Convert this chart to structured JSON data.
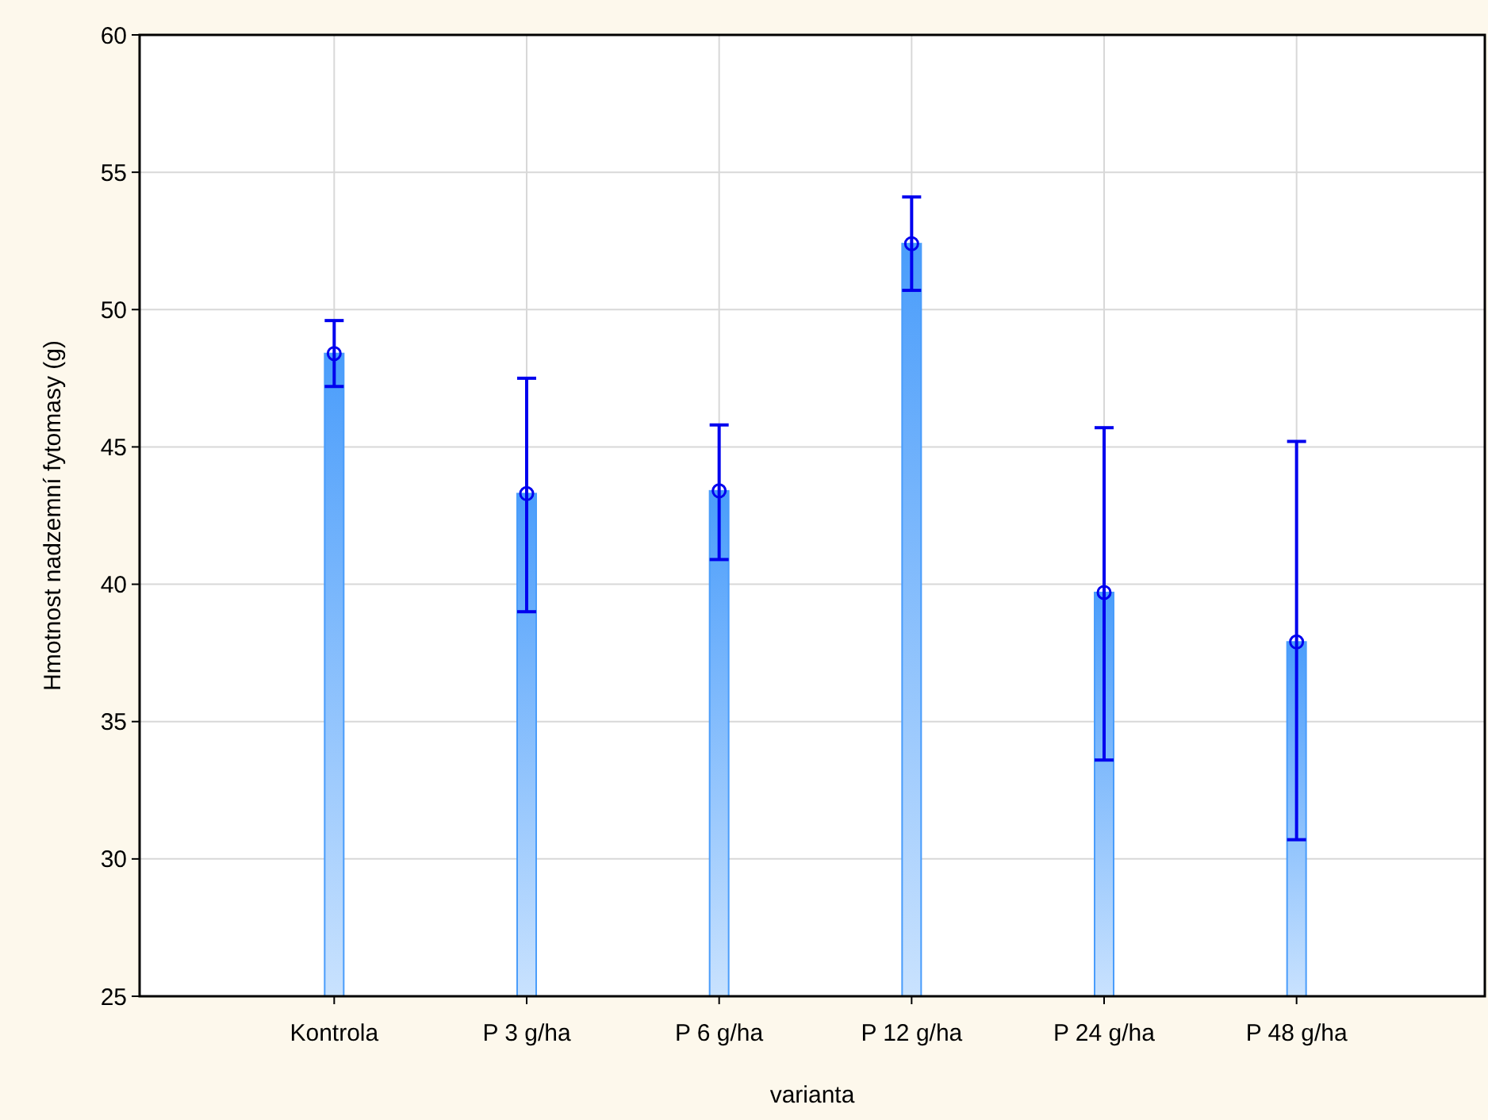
{
  "chart_data": {
    "type": "bar",
    "xlabel": "varianta",
    "ylabel": "Hmotnost nadzemní fytomasy (g)",
    "categories": [
      "Kontrola",
      "P 3 g/ha",
      "P 6 g/ha",
      "P 12 g/ha",
      "P 24 g/ha",
      "P 48 g/ha"
    ],
    "series": [
      {
        "color": "#4a9dfb",
        "values": [
          48.4,
          43.3,
          43.4,
          52.4,
          39.7,
          37.9
        ],
        "errors": [
          [
            47.2,
            49.6
          ],
          [
            39.0,
            47.5
          ],
          [
            40.9,
            45.8
          ],
          [
            50.7,
            54.1
          ],
          [
            33.6,
            45.7
          ],
          [
            30.7,
            45.2
          ]
        ]
      },
      {
        "type": "scatter",
        "color": "#0000ee",
        "x": [
          "Kontrola",
          "P 3 g/ha",
          "P 6 g/ha",
          "P 12 g/ha",
          "P 24 g/ha",
          "P 48 g/ha"
        ],
        "values": [
          48.4,
          43.3,
          43.4,
          52.4,
          39.7,
          37.9
        ]
      }
    ],
    "ylim": [
      25,
      60
    ],
    "yticks": [
      25,
      30,
      35,
      40,
      45,
      50,
      55,
      60
    ],
    "grid": true,
    "marker": "circle"
  }
}
